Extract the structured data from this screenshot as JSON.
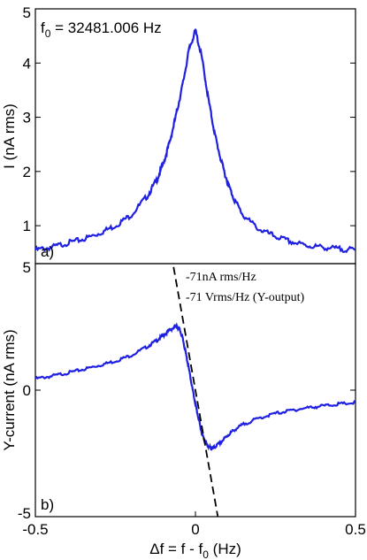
{
  "chart_data": [
    {
      "panel": "a)",
      "type": "line",
      "annotation": "f0 = 32481.006 Hz",
      "annotation_main": "f",
      "annotation_sub": "0",
      "annotation_rest": " = 32481.006 Hz",
      "ylabel": "I (nA rms)",
      "xlim": [
        -0.5,
        0.5
      ],
      "ylim": [
        0.3,
        5
      ],
      "yticks": [
        1,
        2,
        3,
        4,
        5
      ],
      "ytick_labels": [
        "1",
        "2",
        "3",
        "4",
        "5"
      ],
      "series": [
        {
          "color": "#2020e0",
          "x": [
            -0.5,
            -0.45,
            -0.4,
            -0.35,
            -0.3,
            -0.25,
            -0.2,
            -0.15,
            -0.12,
            -0.1,
            -0.08,
            -0.06,
            -0.04,
            -0.02,
            0.0,
            0.02,
            0.04,
            0.06,
            0.08,
            0.1,
            0.12,
            0.15,
            0.2,
            0.25,
            0.3,
            0.35,
            0.4,
            0.45,
            0.5
          ],
          "y": [
            0.55,
            0.6,
            0.68,
            0.75,
            0.86,
            1.0,
            1.2,
            1.55,
            1.85,
            2.15,
            2.55,
            3.05,
            3.6,
            4.25,
            4.6,
            4.1,
            3.35,
            2.7,
            2.2,
            1.8,
            1.5,
            1.18,
            0.93,
            0.8,
            0.7,
            0.63,
            0.6,
            0.57,
            0.55
          ]
        }
      ]
    },
    {
      "panel": "b)",
      "type": "line",
      "xlabel": "Δf = f - f0 (Hz)",
      "xlabel_main": "Δf = f - f",
      "xlabel_sub": "0",
      "xlabel_rest": " (Hz)",
      "ylabel": "Y-current (nA rms)",
      "xlim": [
        -0.5,
        0.5
      ],
      "ylim": [
        -5,
        5
      ],
      "xticks": [
        -0.5,
        0,
        0.5
      ],
      "xtick_labels": [
        "-0.5",
        "0",
        "0.5"
      ],
      "yticks": [
        -5,
        0,
        5
      ],
      "ytick_labels": [
        "-5",
        "0",
        "5"
      ],
      "annotations": [
        "-71nA rms/Hz",
        "-71 Vrms/Hz (Y-output)"
      ],
      "series": [
        {
          "color": "#2020e0",
          "x": [
            -0.5,
            -0.45,
            -0.4,
            -0.35,
            -0.3,
            -0.25,
            -0.2,
            -0.15,
            -0.12,
            -0.1,
            -0.08,
            -0.06,
            -0.05,
            -0.04,
            -0.03,
            -0.02,
            -0.01,
            0.0,
            0.01,
            0.02,
            0.03,
            0.04,
            0.05,
            0.06,
            0.08,
            0.1,
            0.12,
            0.15,
            0.2,
            0.25,
            0.3,
            0.35,
            0.4,
            0.45,
            0.5
          ],
          "y": [
            0.45,
            0.55,
            0.68,
            0.82,
            0.98,
            1.15,
            1.38,
            1.72,
            1.97,
            2.17,
            2.38,
            2.52,
            2.42,
            2.05,
            1.45,
            0.8,
            0.1,
            -0.55,
            -1.15,
            -1.7,
            -2.05,
            -2.22,
            -2.3,
            -2.25,
            -2.05,
            -1.8,
            -1.58,
            -1.35,
            -1.1,
            -0.92,
            -0.8,
            -0.7,
            -0.62,
            -0.55,
            -0.5
          ]
        },
        {
          "style": "dashed",
          "color": "#000000",
          "x": [
            -0.075,
            0.075
          ],
          "y": [
            5.35,
            -5.35
          ]
        }
      ]
    }
  ]
}
